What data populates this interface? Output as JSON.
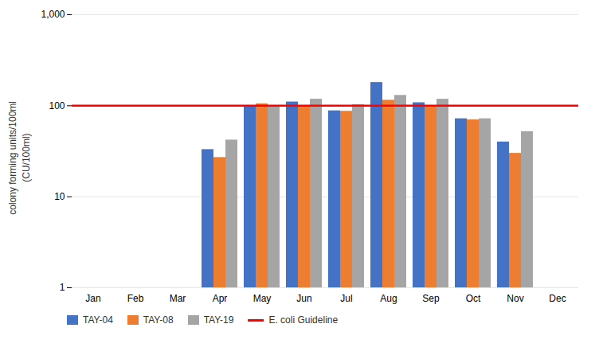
{
  "chart_data": {
    "type": "bar",
    "categories": [
      "Jan",
      "Feb",
      "Mar",
      "Apr",
      "May",
      "Jun",
      "Jul",
      "Aug",
      "Sep",
      "Oct",
      "Nov",
      "Dec"
    ],
    "series": [
      {
        "name": "TAY-04",
        "color": "#4472C4",
        "values": [
          null,
          null,
          null,
          33,
          97,
          110,
          88,
          180,
          108,
          72,
          40,
          null
        ]
      },
      {
        "name": "TAY-08",
        "color": "#ED7D31",
        "values": [
          null,
          null,
          null,
          27,
          105,
          100,
          87,
          115,
          100,
          70,
          30,
          null
        ]
      },
      {
        "name": "TAY-19",
        "color": "#A5A5A5",
        "values": [
          null,
          null,
          null,
          42,
          97,
          118,
          103,
          130,
          118,
          72,
          52,
          null
        ]
      }
    ],
    "guideline": {
      "name": "E. coli Guideline",
      "value": 100,
      "color": "#FF0000"
    },
    "ylabel": "colony forming units/100ml\n(CU/100ml)",
    "log": "y",
    "ylim": [
      1,
      1000
    ],
    "yticks": [
      1,
      10,
      100,
      {
        "value": 1000,
        "label": "1,000"
      }
    ],
    "grid": true,
    "legend": "bottom"
  }
}
